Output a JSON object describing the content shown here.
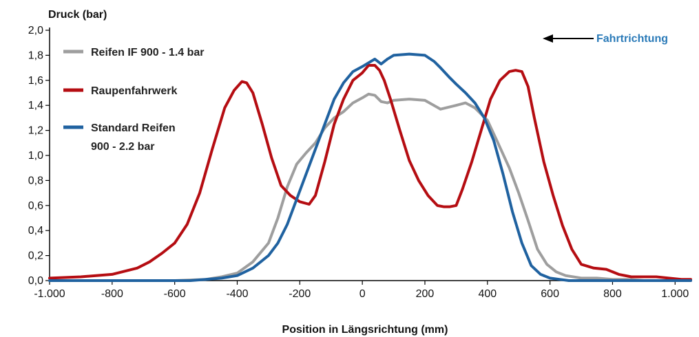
{
  "chart_data": {
    "type": "line",
    "ylabel": "Druck (bar)",
    "xlabel": "Position in Längsrichtung (mm)",
    "xlim": [
      -1000,
      1050
    ],
    "ylim": [
      0,
      2.0
    ],
    "x_ticks": [
      -1000,
      -800,
      -600,
      -400,
      -200,
      0,
      200,
      400,
      600,
      800,
      1000
    ],
    "x_tick_labels": [
      "-1.000",
      "-800",
      "-600",
      "-400",
      "-200",
      "0",
      "200",
      "400",
      "600",
      "800",
      "1.000"
    ],
    "y_ticks": [
      0,
      0.2,
      0.4,
      0.6,
      0.8,
      1.0,
      1.2,
      1.4,
      1.6,
      1.8,
      2.0
    ],
    "y_tick_labels": [
      "0,0",
      "0,2",
      "0,4",
      "0,6",
      "0,8",
      "1,0",
      "1,2",
      "1,4",
      "1,6",
      "1,8",
      "2,0"
    ],
    "grid": false,
    "legend_position": "top-left",
    "annotation": {
      "text": "Fahrtrichtung",
      "color": "#2a7ab8",
      "arrow": "left"
    },
    "series": [
      {
        "name": "Reifen IF 900 - 1.4 bar",
        "legend_lines": [
          "Reifen IF 900 - 1.4 bar"
        ],
        "color": "#9e9e9e",
        "x": [
          -1000,
          -600,
          -500,
          -450,
          -400,
          -350,
          -300,
          -270,
          -240,
          -210,
          -180,
          -150,
          -120,
          -90,
          -60,
          -30,
          0,
          20,
          40,
          60,
          80,
          100,
          150,
          200,
          250,
          300,
          330,
          360,
          400,
          430,
          470,
          500,
          530,
          560,
          590,
          620,
          650,
          700,
          750,
          800,
          850,
          900,
          950,
          1000,
          1050
        ],
        "y": [
          0.0,
          0.0,
          0.01,
          0.03,
          0.06,
          0.15,
          0.3,
          0.5,
          0.75,
          0.93,
          1.02,
          1.1,
          1.22,
          1.3,
          1.35,
          1.42,
          1.46,
          1.49,
          1.48,
          1.43,
          1.42,
          1.44,
          1.45,
          1.44,
          1.37,
          1.4,
          1.42,
          1.38,
          1.28,
          1.12,
          0.9,
          0.7,
          0.48,
          0.25,
          0.13,
          0.07,
          0.04,
          0.02,
          0.02,
          0.01,
          0.01,
          0.0,
          0.0,
          0.0,
          0.0
        ]
      },
      {
        "name": "Raupenfahrwerk",
        "legend_lines": [
          "Raupenfahrwerk"
        ],
        "color": "#b50d12",
        "x": [
          -1000,
          -900,
          -800,
          -720,
          -680,
          -640,
          -600,
          -560,
          -520,
          -480,
          -440,
          -410,
          -385,
          -370,
          -350,
          -320,
          -290,
          -260,
          -230,
          -200,
          -170,
          -150,
          -120,
          -90,
          -60,
          -30,
          0,
          20,
          40,
          55,
          70,
          90,
          120,
          150,
          180,
          210,
          240,
          260,
          280,
          300,
          320,
          350,
          380,
          410,
          440,
          470,
          490,
          510,
          530,
          550,
          580,
          610,
          640,
          670,
          700,
          740,
          780,
          820,
          860,
          900,
          940,
          980,
          1020,
          1050
        ],
        "y": [
          0.02,
          0.03,
          0.05,
          0.1,
          0.15,
          0.22,
          0.3,
          0.45,
          0.7,
          1.05,
          1.38,
          1.52,
          1.59,
          1.58,
          1.5,
          1.25,
          0.98,
          0.76,
          0.68,
          0.63,
          0.61,
          0.68,
          0.95,
          1.25,
          1.45,
          1.6,
          1.66,
          1.72,
          1.72,
          1.68,
          1.6,
          1.45,
          1.2,
          0.96,
          0.8,
          0.68,
          0.6,
          0.59,
          0.59,
          0.6,
          0.73,
          0.95,
          1.2,
          1.45,
          1.6,
          1.67,
          1.68,
          1.67,
          1.55,
          1.3,
          0.95,
          0.68,
          0.44,
          0.25,
          0.13,
          0.1,
          0.09,
          0.05,
          0.03,
          0.03,
          0.03,
          0.02,
          0.01,
          0.01
        ]
      },
      {
        "name": "Standard Reifen 900 - 2.2 bar",
        "legend_lines": [
          "Standard Reifen",
          "900 - 2.2 bar"
        ],
        "color": "#2062a0",
        "x": [
          -1000,
          -550,
          -500,
          -450,
          -400,
          -350,
          -300,
          -270,
          -240,
          -210,
          -180,
          -150,
          -120,
          -90,
          -60,
          -30,
          0,
          20,
          40,
          60,
          80,
          100,
          150,
          200,
          230,
          250,
          280,
          300,
          330,
          360,
          390,
          420,
          450,
          480,
          510,
          540,
          570,
          600,
          630,
          660,
          700,
          750,
          800,
          850,
          900,
          950,
          1000,
          1050
        ],
        "y": [
          0.0,
          0.0,
          0.01,
          0.02,
          0.04,
          0.1,
          0.2,
          0.3,
          0.45,
          0.65,
          0.85,
          1.05,
          1.25,
          1.45,
          1.58,
          1.67,
          1.71,
          1.74,
          1.77,
          1.73,
          1.77,
          1.8,
          1.81,
          1.8,
          1.75,
          1.7,
          1.62,
          1.57,
          1.5,
          1.42,
          1.3,
          1.12,
          0.85,
          0.55,
          0.3,
          0.12,
          0.05,
          0.02,
          0.01,
          0.0,
          0.0,
          0.0,
          0.0,
          0.0,
          0.0,
          0.0,
          0.0,
          0.0
        ]
      }
    ]
  }
}
